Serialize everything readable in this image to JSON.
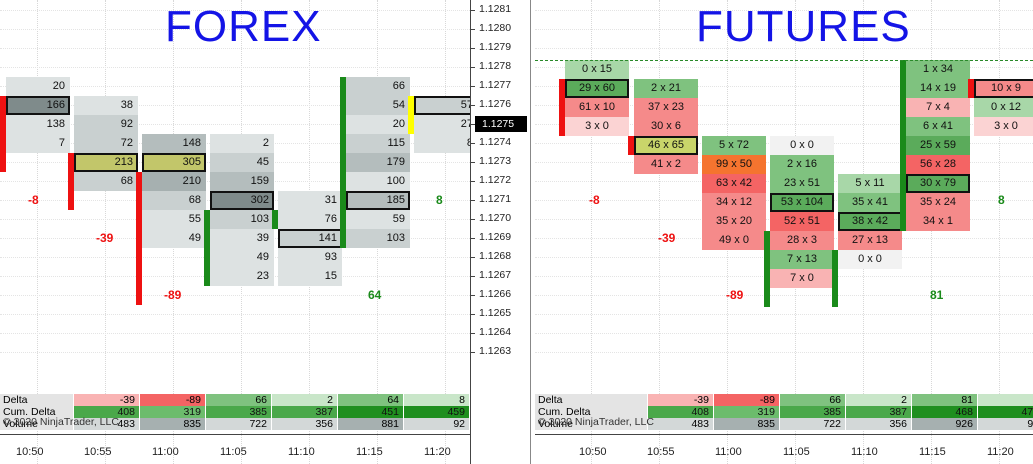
{
  "left_title": "FOREX",
  "right_title": "FUTURES",
  "copyright": "© 2020 NinjaTrader, LLC",
  "price_axis": [
    "1.1281",
    "1.1280",
    "1.1279",
    "1.1278",
    "1.1277",
    "1.1276",
    "1.1275",
    "1.1274",
    "1.1273",
    "1.1272",
    "1.1271",
    "1.1270",
    "1.1269",
    "1.1268",
    "1.1267",
    "1.1266",
    "1.1265",
    "1.1264",
    "1.1263"
  ],
  "current_price": "1.1275",
  "time_axis": [
    "10:50",
    "10:55",
    "11:00",
    "11:05",
    "11:10",
    "11:15",
    "11:20"
  ],
  "forex": {
    "bars": [
      {
        "cells": [
          [
            "20",
            0
          ],
          [
            "166",
            4,
            true
          ],
          [
            "138",
            0
          ],
          [
            "7",
            0
          ]
        ],
        "top": 1.1277,
        "delta": "-8",
        "dpos": 1.1271
      },
      {
        "cells": [
          [
            "38",
            0
          ],
          [
            "92",
            1
          ],
          [
            "72",
            1
          ],
          [
            "213",
            5,
            true
          ],
          [
            "68",
            1
          ]
        ],
        "top": 1.1276,
        "delta": "-39",
        "dpos": 1.1269
      },
      {
        "cells": [
          [
            "148",
            2
          ],
          [
            "305",
            5,
            true
          ],
          [
            "210",
            3
          ],
          [
            "68",
            1
          ],
          [
            "55",
            0
          ],
          [
            "49",
            0
          ]
        ],
        "top": 1.1274,
        "delta": "-89",
        "dpos": 1.1266
      },
      {
        "cells": [
          [
            "2",
            0
          ],
          [
            "45",
            1
          ],
          [
            "159",
            2
          ],
          [
            "302",
            4,
            true
          ],
          [
            "103",
            1
          ],
          [
            "39",
            0
          ],
          [
            "49",
            0
          ],
          [
            "23",
            0
          ]
        ],
        "top": 1.1274,
        "delta": "",
        "dpos": 0
      },
      {
        "cells": [
          [
            "31",
            0
          ],
          [
            "76",
            0
          ],
          [
            "141",
            1,
            true
          ],
          [
            "93",
            0
          ],
          [
            "15",
            0
          ]
        ],
        "top": 1.1271,
        "delta": "",
        "dpos": 0
      },
      {
        "cells": [
          [
            "66",
            1
          ],
          [
            "54",
            1
          ],
          [
            "20",
            0
          ],
          [
            "115",
            1
          ],
          [
            "179",
            2
          ],
          [
            "100",
            0
          ],
          [
            "185",
            2,
            true
          ],
          [
            "59",
            0
          ],
          [
            "103",
            1
          ]
        ],
        "top": 1.1277,
        "delta": "64",
        "dpos": 1.1266
      },
      {
        "cells": [
          [
            "57",
            1,
            true
          ],
          [
            "27",
            0
          ],
          [
            "8",
            0
          ]
        ],
        "top": 1.1276,
        "delta": "8",
        "dpos": 1.1271
      }
    ]
  },
  "futures": {
    "bars": [
      {
        "cells": [
          "0 x 15",
          "29 x 60",
          "61 x 10",
          "3 x 0"
        ],
        "top": 1.1278,
        "delta": "-8"
      },
      {
        "cells": [
          "2 x 21",
          "37 x 23",
          "30 x 6",
          "46 x 65",
          "41 x 2"
        ],
        "top": 1.1277,
        "delta": "-39"
      },
      {
        "cells": [
          "5 x 72",
          "99 x 50",
          "63 x 42",
          "34 x 12",
          "35 x 20",
          "49 x 0"
        ],
        "top": 1.1274,
        "delta": "-89"
      },
      {
        "cells": [
          "0 x 0",
          "2 x 16",
          "23 x 51",
          "53 x 104",
          "52 x 51",
          "28 x 3",
          "7 x 13",
          "7 x 0"
        ],
        "top": 1.1274,
        "delta": ""
      },
      {
        "cells": [
          "5 x 11",
          "35 x 41",
          "38 x 42",
          "27 x 13",
          "0 x 0"
        ],
        "top": 1.1272,
        "delta": ""
      },
      {
        "cells": [
          "1 x 34",
          "14 x 19",
          "7 x 4",
          "6 x 41",
          "25 x 59",
          "56 x 28",
          "30 x 79",
          "35 x 24",
          "34 x 1"
        ],
        "top": 1.1278,
        "delta": "81"
      },
      {
        "cells": [
          "10 x 9",
          "0 x 12",
          "3 x 0"
        ],
        "top": 1.1277,
        "delta": "8"
      }
    ],
    "mid_labels": {
      "b4": "",
      "b5": ""
    }
  },
  "summary_left": {
    "labels": [
      "Delta",
      "Cum. Delta",
      "Volume"
    ],
    "delta": [
      "-39",
      "-89",
      "66",
      "2",
      "64",
      "8"
    ],
    "cum": [
      "408",
      "319",
      "385",
      "387",
      "451",
      "459"
    ],
    "volume": [
      "483",
      "835",
      "722",
      "356",
      "881",
      "92"
    ]
  },
  "summary_right": {
    "labels": [
      "Delta",
      "Cum. Delta",
      "Volume"
    ],
    "delta": [
      "-39",
      "-89",
      "66",
      "2",
      "81",
      "8"
    ],
    "cum": [
      "408",
      "319",
      "385",
      "387",
      "468",
      "476"
    ],
    "volume": [
      "483",
      "835",
      "722",
      "356",
      "926",
      "92"
    ]
  },
  "overflow_labels": {
    "l1": "66",
    "l2": "2"
  },
  "colors": {
    "title": "#1414e6",
    "red": "#e11",
    "green": "#1a8a1a"
  }
}
